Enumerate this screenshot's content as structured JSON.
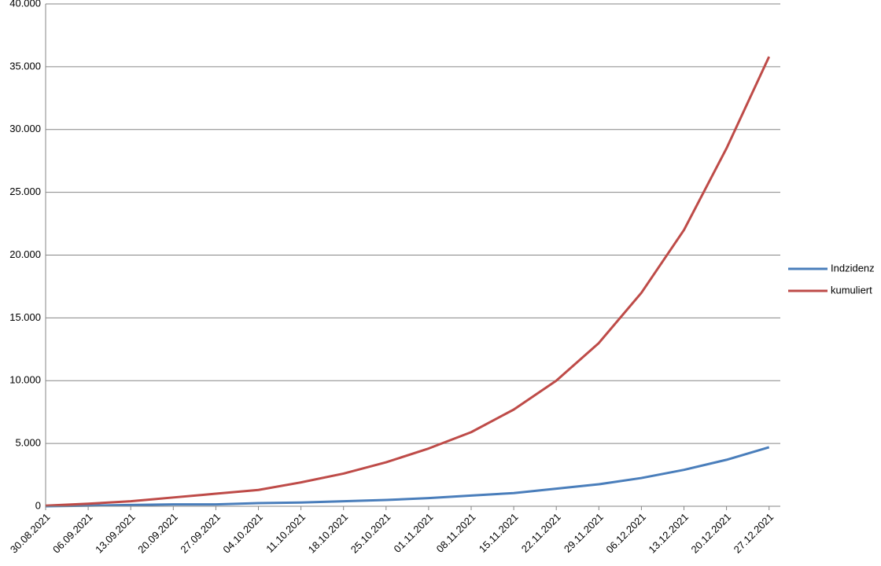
{
  "chart_data": {
    "type": "line",
    "categories": [
      "30.08.2021",
      "06.09.2021",
      "13.09.2021",
      "20.09.2021",
      "27.09.2021",
      "04.10.2021",
      "11.10.2021",
      "18.10.2021",
      "25.10.2021",
      "01.11.2021",
      "08.11.2021",
      "15.11.2021",
      "22.11.2021",
      "29.11.2021",
      "06.12.2021",
      "13.12.2021",
      "20.12.2021",
      "27.12.2021"
    ],
    "series": [
      {
        "name": "Indzidenz",
        "color": "#4a7ebb",
        "values": [
          0,
          50,
          100,
          150,
          150,
          250,
          300,
          400,
          500,
          650,
          850,
          1050,
          1400,
          1750,
          2250,
          2900,
          3700,
          4700
        ]
      },
      {
        "name": "kumuliert",
        "color": "#be4b48",
        "values": [
          50,
          200,
          400,
          700,
          1000,
          1300,
          1900,
          2600,
          3500,
          4600,
          5900,
          7700,
          10000,
          13000,
          17000,
          22000,
          28500,
          35800
        ]
      }
    ],
    "ylim": [
      0,
      40000
    ],
    "yticks": [
      0,
      {
        "value": 5000,
        "label": "5.000"
      },
      {
        "value": 10000,
        "label": "10.000"
      },
      {
        "value": 15000,
        "label": "15.000"
      },
      {
        "value": 20000,
        "label": "20.000"
      },
      {
        "value": 25000,
        "label": "25.000"
      },
      {
        "value": 30000,
        "label": "30.000"
      },
      {
        "value": 35000,
        "label": "35.000"
      },
      {
        "value": 40000,
        "label": "40.000"
      }
    ],
    "grid": true,
    "legend": "right"
  }
}
